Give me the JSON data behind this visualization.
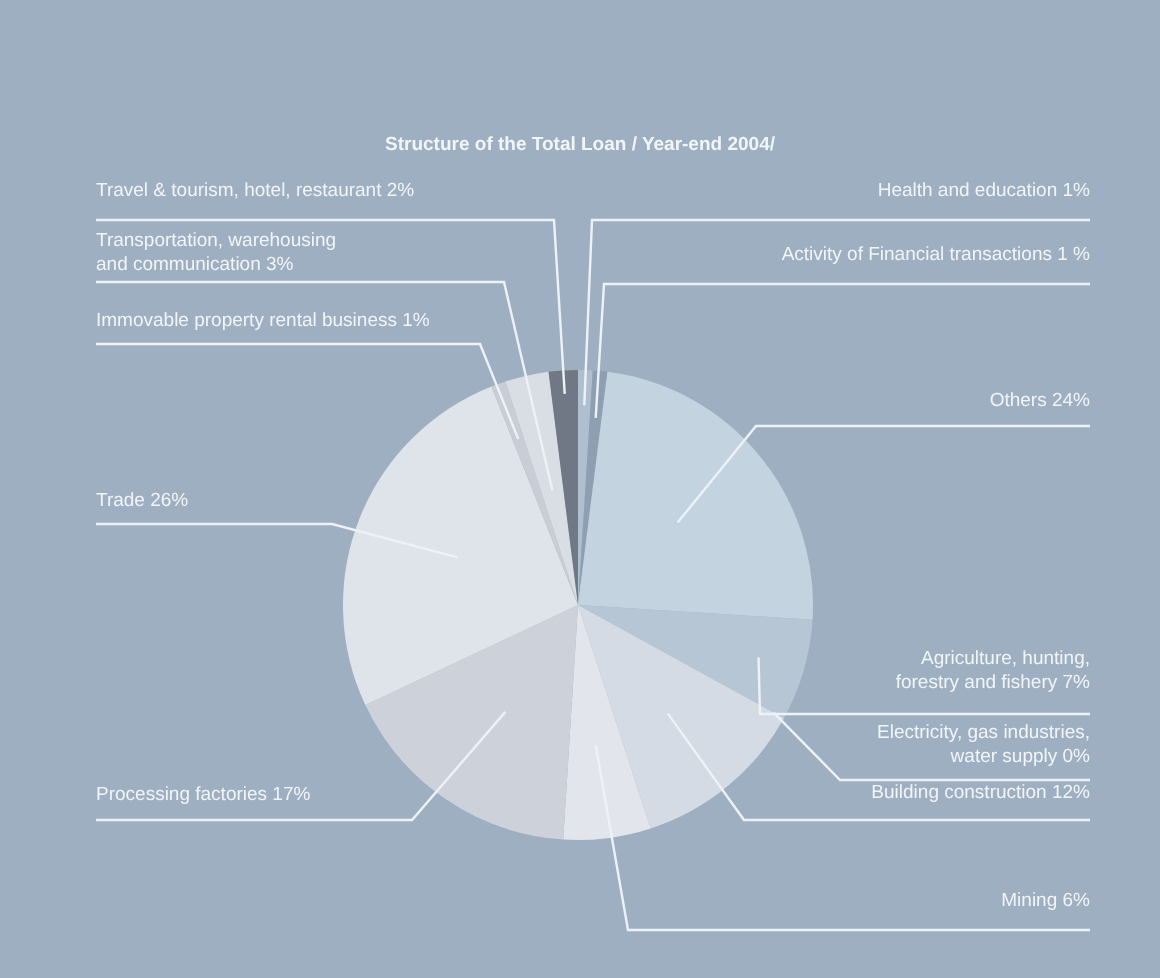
{
  "chart_data": {
    "type": "pie",
    "title": "Structure of the Total Loan / Year-end 2004/",
    "categories": [
      "Health and education",
      "Activity of Financial transactions",
      "Others",
      "Agriculture, hunting, forestry and fishery",
      "Electricity, gas industries, water supply",
      "Building construction",
      "Mining",
      "Processing factories",
      "Trade",
      "Immovable property rental business",
      "Transportation, warehousing and communication",
      "Travel & tourism, hotel, restaurant"
    ],
    "values": [
      1,
      1,
      24,
      7,
      0,
      12,
      6,
      17,
      26,
      1,
      3,
      2
    ],
    "value_labels": [
      "1%",
      "1 %",
      "24%",
      "7%",
      "0%",
      "12%",
      "6%",
      "17%",
      "26%",
      "1%",
      "3%",
      "2%"
    ],
    "colors": [
      "#aebfd0",
      "#8f9fb2",
      "#c3d3e0",
      "#b6c6d4",
      "#c8d4df",
      "#d5dbe4",
      "#e2e6ec",
      "#cdd2da",
      "#dfe3ea",
      "#c8cdd6",
      "#d9dde4",
      "#6f7884"
    ],
    "legend": false
  }
}
